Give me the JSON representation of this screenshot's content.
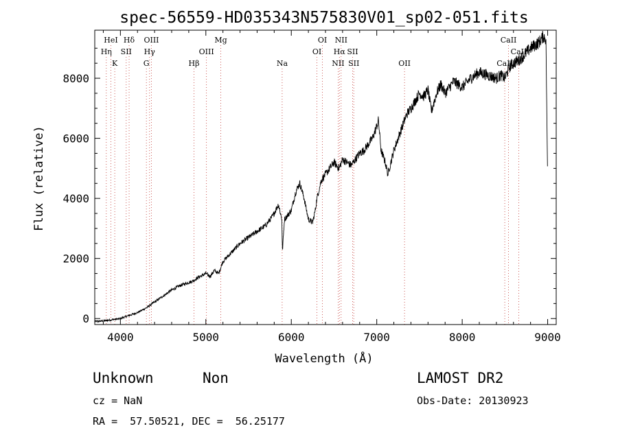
{
  "chart_data": {
    "type": "line",
    "title": "spec-56559-HD035343N575830V01_sp02-051.fits",
    "xlabel": "Wavelength (Å)",
    "ylabel": "Flux (relative)",
    "xlim": [
      3700,
      9100
    ],
    "ylim": [
      -200,
      9600
    ],
    "xticks": [
      4000,
      5000,
      6000,
      7000,
      8000,
      9000
    ],
    "yticks": [
      0,
      2000,
      4000,
      6000,
      8000
    ],
    "series": [
      {
        "x": [
          3700,
          3800,
          3900,
          4000,
          4100,
          4200,
          4300,
          4400,
          4500,
          4600,
          4700,
          4800,
          4850,
          4900,
          5000,
          5050,
          5100,
          5150,
          5200,
          5300,
          5400,
          5500,
          5600,
          5700,
          5780,
          5850,
          5890,
          5895,
          5920,
          6000,
          6050,
          6080,
          6100,
          6150,
          6200,
          6250,
          6280,
          6300,
          6350,
          6400,
          6450,
          6500,
          6560,
          6600,
          6650,
          6700,
          6800,
          6850,
          6900,
          6950,
          7000,
          7020,
          7050,
          7100,
          7130,
          7200,
          7300,
          7350,
          7400,
          7500,
          7550,
          7600,
          7640,
          7700,
          7750,
          7800,
          7900,
          8000,
          8100,
          8200,
          8300,
          8400,
          8450,
          8500,
          8540,
          8560,
          8600,
          8660,
          8700,
          8800,
          8900,
          8950,
          8980,
          9000
        ],
        "y": [
          -100,
          -80,
          -40,
          0,
          100,
          200,
          350,
          550,
          750,
          950,
          1100,
          1200,
          1250,
          1350,
          1500,
          1400,
          1600,
          1500,
          1900,
          2200,
          2500,
          2700,
          2900,
          3100,
          3400,
          3800,
          3300,
          2200,
          3300,
          3600,
          4200,
          4400,
          4500,
          4000,
          3300,
          3200,
          3600,
          4000,
          4600,
          4800,
          5000,
          5200,
          5000,
          5300,
          5200,
          5100,
          5500,
          5600,
          5800,
          6000,
          6400,
          6600,
          5600,
          5200,
          4800,
          5600,
          6400,
          6800,
          7000,
          7500,
          7400,
          7600,
          6900,
          7500,
          7800,
          7500,
          7900,
          7700,
          8000,
          8200,
          8100,
          8000,
          8100,
          8000,
          8300,
          8400,
          8500,
          8600,
          8700,
          9000,
          9200,
          9400,
          9300,
          4500
        ]
      }
    ],
    "lines": [
      {
        "label": "Hη",
        "wave": 3835,
        "row": 1
      },
      {
        "label": "HeI",
        "wave": 3889,
        "row": 0
      },
      {
        "label": "K",
        "wave": 3934,
        "row": 2
      },
      {
        "label": "SII",
        "wave": 4068,
        "row": 1
      },
      {
        "label": "Hδ",
        "wave": 4102,
        "row": 0
      },
      {
        "label": "G",
        "wave": 4304,
        "row": 2
      },
      {
        "label": "Hγ",
        "wave": 4341,
        "row": 1
      },
      {
        "label": "OIII",
        "wave": 4363,
        "row": 0
      },
      {
        "label": "Hβ",
        "wave": 4861,
        "row": 2
      },
      {
        "label": "OIII",
        "wave": 5007,
        "row": 1
      },
      {
        "label": "Mg",
        "wave": 5175,
        "row": 0
      },
      {
        "label": "Na",
        "wave": 5893,
        "row": 2
      },
      {
        "label": "OI",
        "wave": 6300,
        "row": 1
      },
      {
        "label": "OI",
        "wave": 6364,
        "row": 0
      },
      {
        "label": "NII",
        "wave": 6548,
        "row": 2
      },
      {
        "label": "Hα",
        "wave": 6563,
        "row": 1
      },
      {
        "label": "NII",
        "wave": 6583,
        "row": 0
      },
      {
        "label": "SII",
        "wave": 6717,
        "row": 1
      },
      {
        "label": "SII",
        "wave": 6731,
        "row": 2
      },
      {
        "label": "OII",
        "wave": 7325,
        "row": 2
      },
      {
        "label": "CaII",
        "wave": 8498,
        "row": 2
      },
      {
        "label": "CaII",
        "wave": 8542,
        "row": 0
      },
      {
        "label": "CaII",
        "wave": 8662,
        "row": 1
      }
    ]
  },
  "info": {
    "class": "Unknown",
    "subclass": "Non",
    "survey": "LAMOST DR2",
    "cz": "cz = NaN",
    "obs_date": "Obs-Date: 20130923",
    "radec": "RA =  57.50521, DEC =  56.25177"
  },
  "colors": {
    "line_marker": "#c0302a",
    "axis": "#000000"
  }
}
